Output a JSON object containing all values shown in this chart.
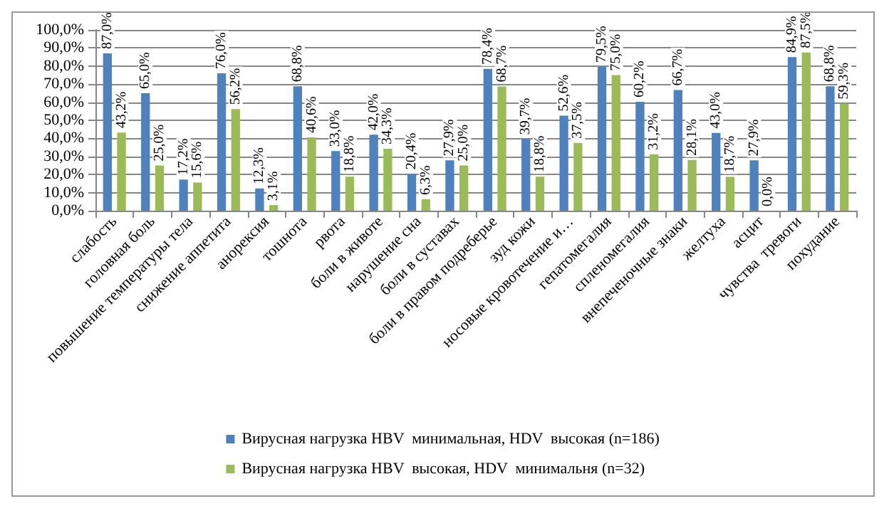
{
  "chart_data": {
    "type": "bar",
    "categories": [
      "слабость",
      "головная боль",
      "повышение температуры тела",
      "снижение аппетита",
      "анорексия",
      "тошнота",
      "рвота",
      "боли в животе",
      "нарушение сна",
      "боли в суставах",
      "боли в правом подреберье",
      "зуд кожи",
      "носовые кровотечение и…",
      "гепатомегалия",
      "спленомегалия",
      "внепеченочные знаки",
      "желтуха",
      "асцит",
      "чувства  тревоги",
      "похудание"
    ],
    "series": [
      {
        "name": "Вирусная нагрузка HBV  минимальная, HDV  высокая (n=186)",
        "color": "#4f81bd",
        "values": [
          87.0,
          65.0,
          17.2,
          76.0,
          12.3,
          68.8,
          33.0,
          42.0,
          20.4,
          27.9,
          78.4,
          39.7,
          52.6,
          79.5,
          60.2,
          66.7,
          43.0,
          27.9,
          84.9,
          68.8
        ],
        "value_labels": [
          "87,0%",
          "65,0%",
          "17,2%",
          "76,0%",
          "12,3%",
          "68,8%",
          "33,0%",
          "42,0%",
          "20,4%",
          "27,9%",
          "78,4%",
          "39,7%",
          "52,6%",
          "79,5%",
          "60,2%",
          "66,7%",
          "43,0%",
          "27,9%",
          "84,9%",
          "68,8%"
        ]
      },
      {
        "name": "Вирусная нагрузка HBV  высокая, HDV  минимальня (n=32)",
        "color": "#9bbb59",
        "values": [
          43.2,
          25.0,
          15.6,
          56.2,
          3.1,
          40.6,
          18.8,
          34.3,
          6.3,
          25.0,
          68.7,
          18.8,
          37.5,
          75.0,
          31.2,
          28.1,
          18.7,
          0.0,
          87.5,
          59.3
        ],
        "value_labels": [
          "43,2%",
          "25,0%",
          "15,6%",
          "56,2%",
          "3,1%",
          "40,6%",
          "18,8%",
          "34,3%",
          "6,3%",
          "25,0%",
          "68,7%",
          "18,8%",
          "37,5%",
          "75,0%",
          "31,2%",
          "28,1%",
          "18,7%",
          "0,0%",
          "87,5%",
          "59,3%"
        ]
      }
    ],
    "ylim": [
      0,
      100
    ],
    "yticks": [
      {
        "value": 0,
        "label": "0,0%"
      },
      {
        "value": 10,
        "label": "10,0%"
      },
      {
        "value": 20,
        "label": "20,0%"
      },
      {
        "value": 30,
        "label": "30,0%"
      },
      {
        "value": 40,
        "label": "40,0%"
      },
      {
        "value": 50,
        "label": "50,0%"
      },
      {
        "value": 60,
        "label": "60,0%"
      },
      {
        "value": 70,
        "label": "70,0%"
      },
      {
        "value": 80,
        "label": "80,0%"
      },
      {
        "value": 90,
        "label": "90,0%"
      },
      {
        "value": 100,
        "label": "100,0%"
      }
    ],
    "grid": "y",
    "legend": "bottom"
  }
}
